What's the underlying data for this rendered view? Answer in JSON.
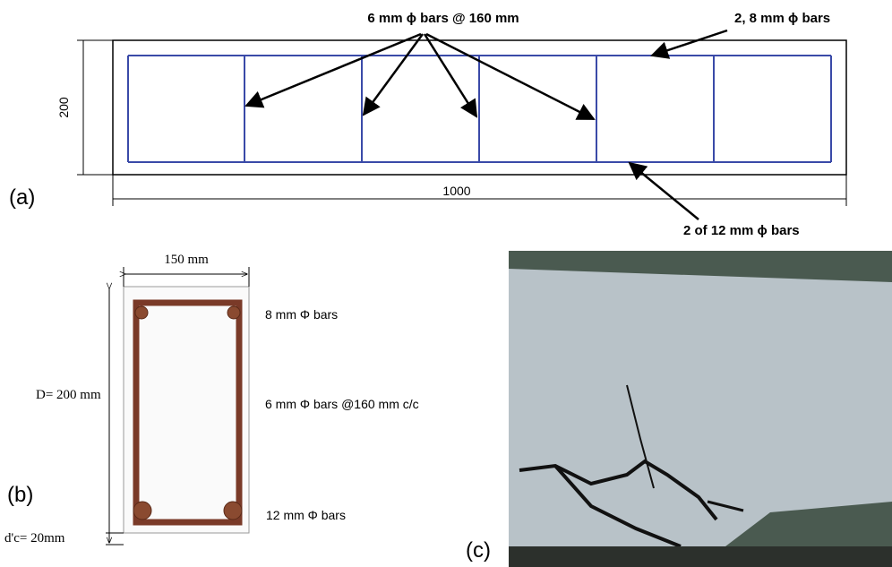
{
  "panel_a": {
    "label": "(a)",
    "stirrup_note": "6 mm ϕ bars @ 160 mm",
    "top_bar_note": "2, 8 mm ϕ bars",
    "bottom_bar_note": "2 of 12 mm ϕ bars",
    "height_dim": "200",
    "length_dim": "1000"
  },
  "panel_b": {
    "label": "(b)",
    "width_dim": "150 mm",
    "depth_dim": "D= 200 mm",
    "cover_dim": "d'c= 20mm",
    "top_bar_note": "8 mm Φ bars",
    "stirrup_note": "6 mm Φ bars @160 mm c/c",
    "bottom_bar_note": "12 mm Φ bars"
  },
  "panel_c": {
    "label": "(c)"
  }
}
